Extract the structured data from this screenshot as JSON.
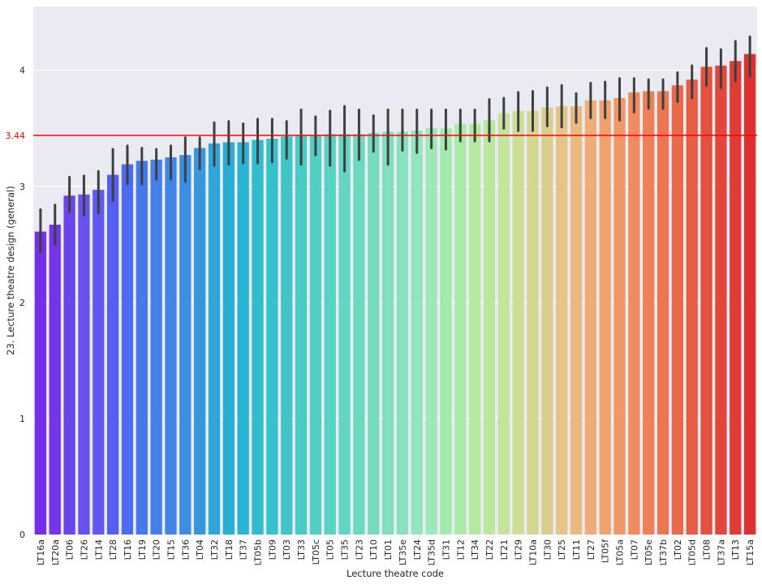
{
  "chart_data": {
    "type": "bar",
    "xlabel": "Lecture theatre code",
    "ylabel": "23. Lecture theatre design (general)",
    "ylim": [
      0,
      4.55
    ],
    "yticks": [
      0,
      1,
      2,
      3,
      4
    ],
    "grid": true,
    "reference_line": {
      "value": 3.44,
      "label": "3.44",
      "color": "#ff0000"
    },
    "categories": [
      "LT16a",
      "LT20a",
      "LT06",
      "LT26",
      "LT14",
      "LT28",
      "LT16",
      "LT19",
      "LT20",
      "LT15",
      "LT36",
      "LT04",
      "LT32",
      "LT18",
      "LT37",
      "LT05b",
      "LT09",
      "LT03",
      "LT33",
      "LT05c",
      "LT05",
      "LT35",
      "LT23",
      "LT10",
      "LT01",
      "LT35e",
      "LT24",
      "LT35d",
      "LT31",
      "LT12",
      "LT34",
      "LT22",
      "LT21",
      "LT29",
      "LT10a",
      "LT30",
      "LT25",
      "LT11",
      "LT27",
      "LT05f",
      "LT05a",
      "LT07",
      "LT05e",
      "LT37b",
      "LT02",
      "LT05d",
      "LT08",
      "LT37a",
      "LT13",
      "LT15a"
    ],
    "values": [
      2.61,
      2.67,
      2.92,
      2.93,
      2.97,
      3.1,
      3.19,
      3.22,
      3.23,
      3.25,
      3.27,
      3.33,
      3.37,
      3.38,
      3.38,
      3.4,
      3.41,
      3.43,
      3.44,
      3.44,
      3.45,
      3.45,
      3.45,
      3.46,
      3.47,
      3.47,
      3.48,
      3.5,
      3.5,
      3.54,
      3.54,
      3.57,
      3.63,
      3.65,
      3.65,
      3.68,
      3.69,
      3.69,
      3.74,
      3.74,
      3.76,
      3.81,
      3.82,
      3.82,
      3.87,
      3.92,
      4.03,
      4.04,
      4.08,
      4.14
    ],
    "error_low": [
      2.43,
      2.5,
      2.78,
      2.75,
      2.77,
      2.88,
      3.02,
      3.02,
      3.06,
      3.06,
      3.04,
      3.15,
      3.18,
      3.19,
      3.2,
      3.2,
      3.21,
      3.24,
      3.19,
      3.27,
      3.18,
      3.13,
      3.23,
      3.3,
      3.19,
      3.31,
      3.29,
      3.33,
      3.32,
      3.39,
      3.39,
      3.39,
      3.5,
      3.48,
      3.48,
      3.52,
      3.51,
      3.55,
      3.59,
      3.59,
      3.57,
      3.64,
      3.67,
      3.67,
      3.73,
      3.76,
      3.87,
      3.85,
      3.91,
      3.95
    ],
    "error_high": [
      2.8,
      2.84,
      3.08,
      3.09,
      3.13,
      3.32,
      3.35,
      3.33,
      3.32,
      3.35,
      3.42,
      3.42,
      3.55,
      3.56,
      3.54,
      3.58,
      3.58,
      3.56,
      3.66,
      3.6,
      3.65,
      3.69,
      3.66,
      3.61,
      3.66,
      3.66,
      3.66,
      3.66,
      3.66,
      3.66,
      3.66,
      3.75,
      3.76,
      3.81,
      3.82,
      3.85,
      3.87,
      3.8,
      3.89,
      3.9,
      3.93,
      3.93,
      3.92,
      3.92,
      3.98,
      4.04,
      4.19,
      4.18,
      4.25,
      4.29
    ],
    "colors": [
      "#772ee8",
      "#7435ea",
      "#6b45ec",
      "#6653ee",
      "#6058f0",
      "#545ff1",
      "#4d6bef",
      "#4778ea",
      "#4480e8",
      "#4185e6",
      "#3b8fe3",
      "#3697e0",
      "#2ea6da",
      "#2aadd6",
      "#2ab4d3",
      "#2fbccf",
      "#36c2ca",
      "#3fc6c7",
      "#48cbc4",
      "#52cec3",
      "#5ad2c1",
      "#63d5c0",
      "#6bd8bf",
      "#74dbbe",
      "#7fdfbe",
      "#89e2be",
      "#92e6bb",
      "#9ce9b7",
      "#a3eaae",
      "#abeba7",
      "#b2eba0",
      "#bae99d",
      "#c3e49a",
      "#ccde96",
      "#d5d692",
      "#ddcd8d",
      "#e5c485",
      "#ebb87e",
      "#eead77",
      "#f0a26e",
      "#f09767",
      "#ef8b5f",
      "#ee8058",
      "#ec7552",
      "#e9694b",
      "#e75e45",
      "#e35240",
      "#e1473b",
      "#df3c35",
      "#dd3130"
    ]
  }
}
